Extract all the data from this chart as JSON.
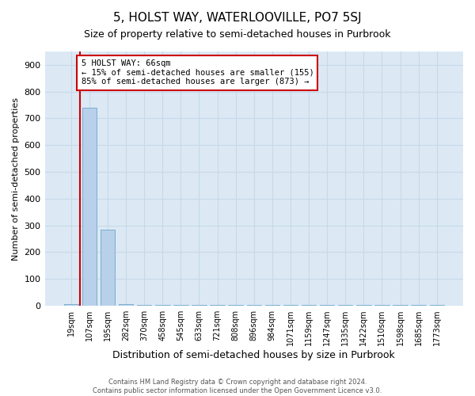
{
  "title": "5, HOLST WAY, WATERLOOVILLE, PO7 5SJ",
  "subtitle": "Size of property relative to semi-detached houses in Purbrook",
  "xlabel": "Distribution of semi-detached houses by size in Purbrook",
  "ylabel": "Number of semi-detached properties",
  "categories": [
    "19sqm",
    "107sqm",
    "195sqm",
    "282sqm",
    "370sqm",
    "458sqm",
    "545sqm",
    "633sqm",
    "721sqm",
    "808sqm",
    "896sqm",
    "984sqm",
    "1071sqm",
    "1159sqm",
    "1247sqm",
    "1335sqm",
    "1422sqm",
    "1510sqm",
    "1598sqm",
    "1685sqm",
    "1773sqm"
  ],
  "values": [
    5,
    740,
    285,
    5,
    3,
    3,
    3,
    3,
    3,
    3,
    3,
    3,
    3,
    3,
    3,
    3,
    3,
    3,
    3,
    3,
    3
  ],
  "bar_color": "#b8d0ea",
  "bar_edgecolor": "#7aaed0",
  "vline_x": 0.5,
  "vline_color": "#cc0000",
  "annotation_text": "5 HOLST WAY: 66sqm\n← 15% of semi-detached houses are smaller (155)\n85% of semi-detached houses are larger (873) →",
  "annotation_box_color": "#cc0000",
  "ylim": [
    0,
    950
  ],
  "yticks": [
    0,
    100,
    200,
    300,
    400,
    500,
    600,
    700,
    800,
    900
  ],
  "grid_color": "#c8d8e8",
  "bg_color": "#dce9f5",
  "footer": "Contains HM Land Registry data © Crown copyright and database right 2024.\nContains public sector information licensed under the Open Government Licence v3.0.",
  "title_fontsize": 11,
  "subtitle_fontsize": 9,
  "xlabel_fontsize": 9,
  "ylabel_fontsize": 8,
  "annot_fontsize": 7.5,
  "footer_fontsize": 6,
  "ytick_fontsize": 8,
  "xtick_fontsize": 7
}
